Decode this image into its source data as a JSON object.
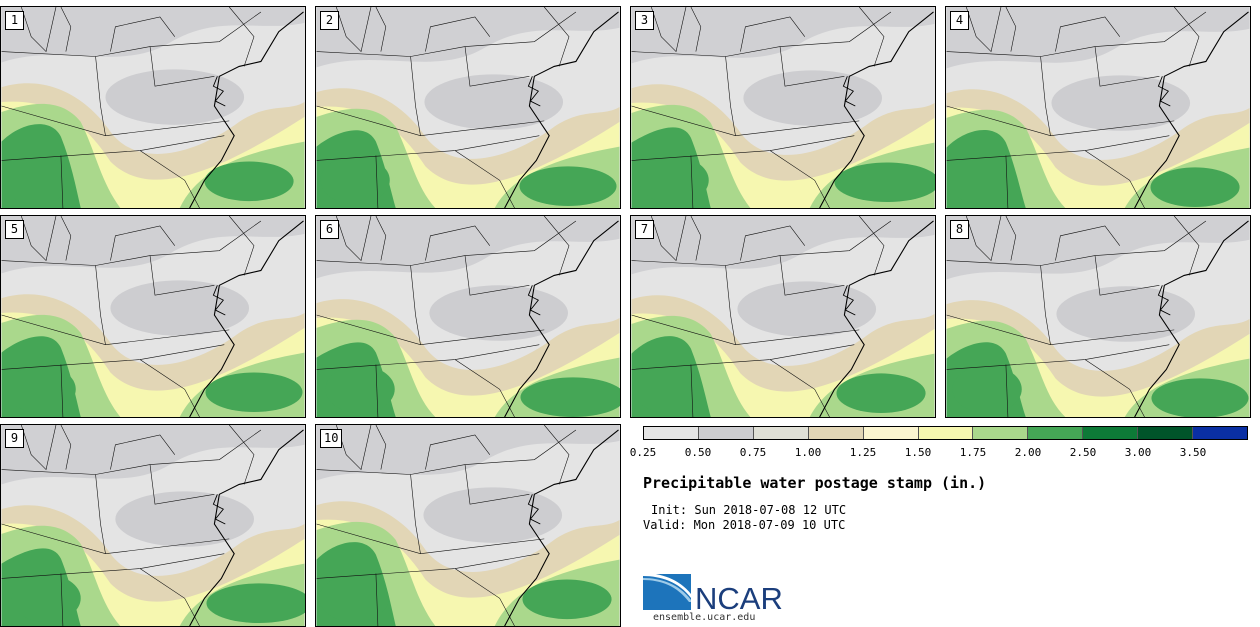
{
  "chart_data": {
    "type": "postage-stamp map",
    "title": "Precipitable water postage stamp (in.)",
    "init": "Init: Sun 2018-07-08 12 UTC",
    "valid": "Valid: Mon 2018-07-09 10 UTC",
    "members": [
      "1",
      "2",
      "3",
      "4",
      "5",
      "6",
      "7",
      "8",
      "9",
      "10"
    ],
    "colorbar": {
      "levels": [
        "0.25",
        "0.50",
        "0.75",
        "1.00",
        "1.25",
        "1.50",
        "1.75",
        "2.00",
        "2.50",
        "3.00",
        "3.50"
      ],
      "colors": [
        "#e4e4e4",
        "#cdcdd0",
        "#e0e0d6",
        "#e2d6b6",
        "#fbf5d0",
        "#f6f7b0",
        "#aad88c",
        "#45a656",
        "#0d7a37",
        "#00542a",
        "#0a2fa4"
      ]
    }
  },
  "credits": {
    "org": "NCAR",
    "url": "ensemble.ucar.edu"
  }
}
